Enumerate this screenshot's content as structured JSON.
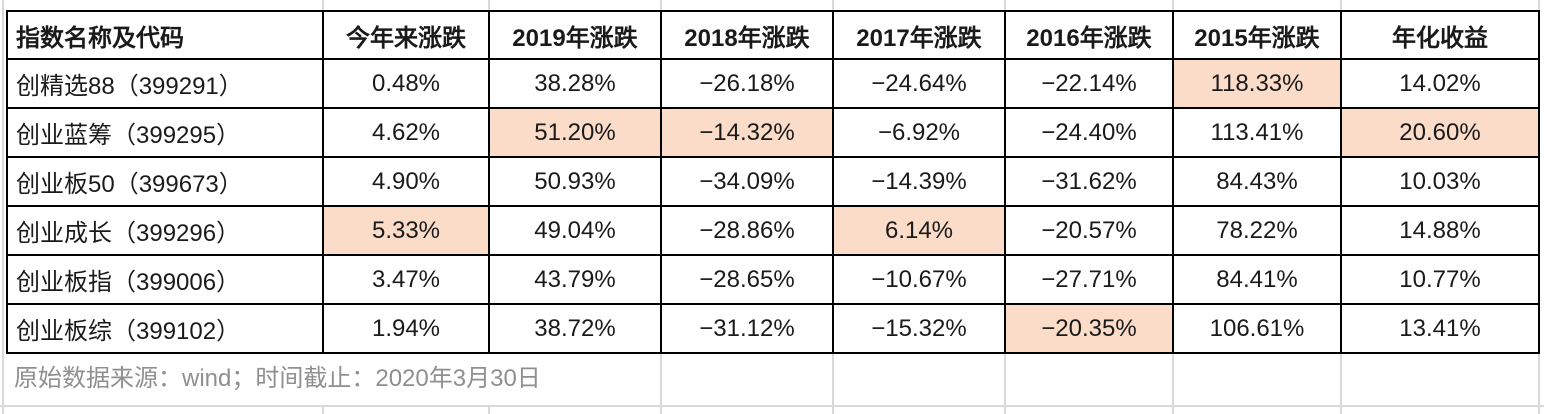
{
  "table": {
    "columns": [
      "指数名称及代码",
      "今年来涨跌",
      "2019年涨跌",
      "2018年涨跌",
      "2017年涨跌",
      "2016年涨跌",
      "2015年涨跌",
      "年化收益"
    ],
    "rows": [
      {
        "name": "创精选88（399291）",
        "values": [
          "0.48%",
          "38.28%",
          "−26.18%",
          "−24.64%",
          "−22.14%",
          "118.33%",
          "14.02%"
        ],
        "highlights": [
          5
        ]
      },
      {
        "name": "创业蓝筹（399295）",
        "values": [
          "4.62%",
          "51.20%",
          "−14.32%",
          "−6.92%",
          "−24.40%",
          "113.41%",
          "20.60%"
        ],
        "highlights": [
          1,
          2,
          6
        ]
      },
      {
        "name": "创业板50（399673）",
        "values": [
          "4.90%",
          "50.93%",
          "−34.09%",
          "−14.39%",
          "−31.62%",
          "84.43%",
          "10.03%"
        ],
        "highlights": []
      },
      {
        "name": "创业成长（399296）",
        "values": [
          "5.33%",
          "49.04%",
          "−28.86%",
          "6.14%",
          "−20.57%",
          "78.22%",
          "14.88%"
        ],
        "highlights": [
          0,
          3
        ]
      },
      {
        "name": "创业板指（399006）",
        "values": [
          "3.47%",
          "43.79%",
          "−28.65%",
          "−10.67%",
          "−27.71%",
          "84.41%",
          "10.77%"
        ],
        "highlights": []
      },
      {
        "name": "创业板综（399102）",
        "values": [
          "1.94%",
          "38.72%",
          "−31.12%",
          "−15.32%",
          "−20.35%",
          "106.61%",
          "13.41%"
        ],
        "highlights": [
          4
        ]
      }
    ]
  },
  "footer": {
    "source_note": "原始数据来源：wind；时间截止：2020年3月30日"
  },
  "colors": {
    "highlight": "#fadcc9",
    "table_border": "#000000",
    "gridline": "#d8d8d8",
    "text": "#1a1a1a",
    "footer_text": "#8f8f8f"
  }
}
